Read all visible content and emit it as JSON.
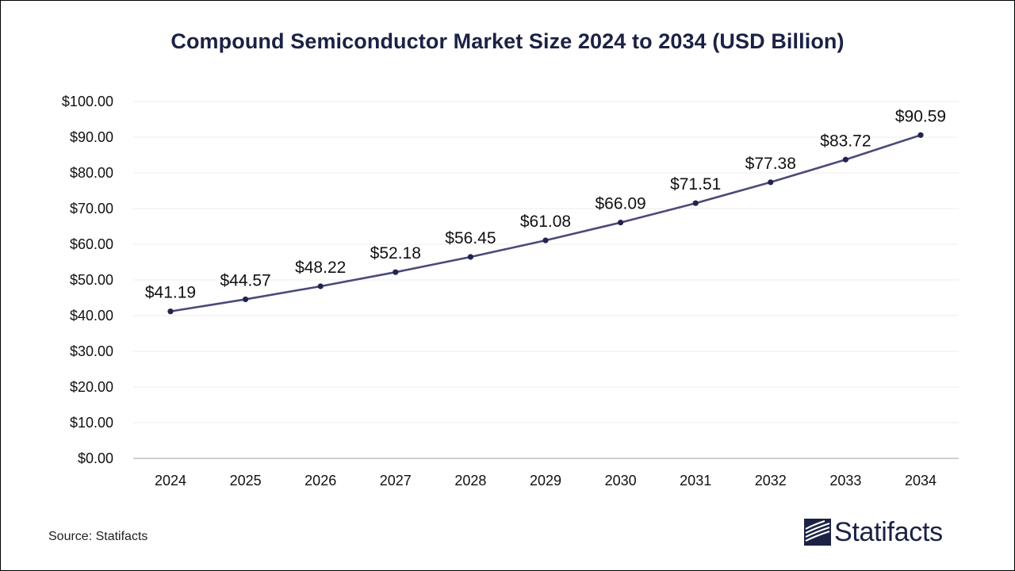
{
  "chart_data": {
    "type": "line",
    "title": "Compound Semiconductor Market Size 2024 to 2034 (USD Billion)",
    "xlabel": "",
    "ylabel": "",
    "categories": [
      "2024",
      "2025",
      "2026",
      "2027",
      "2028",
      "2029",
      "2030",
      "2031",
      "2032",
      "2033",
      "2034"
    ],
    "series": [
      {
        "values": [
          41.19,
          44.57,
          48.22,
          52.18,
          56.45,
          61.08,
          66.09,
          71.51,
          77.38,
          83.72,
          90.59
        ],
        "data_labels": [
          "$41.19",
          "$44.57",
          "$48.22",
          "$52.18",
          "$56.45",
          "$61.08",
          "$66.09",
          "$71.51",
          "$77.38",
          "$83.72",
          "$90.59"
        ]
      }
    ],
    "ylim": [
      0,
      100
    ],
    "yticks": [
      0,
      10,
      20,
      30,
      40,
      50,
      60,
      70,
      80,
      90,
      100
    ],
    "ytick_labels": [
      "$0.00",
      "$10.00",
      "$20.00",
      "$30.00",
      "$40.00",
      "$50.00",
      "$60.00",
      "$70.00",
      "$80.00",
      "$90.00",
      "$100.00"
    ],
    "grid": true,
    "legend": "none"
  },
  "colors": {
    "line": "#4a4a7a",
    "marker": "#23234f",
    "title": "#1b2244",
    "grid": "#ececec",
    "axis": "#bfbfbf",
    "brand": "#1b2244"
  },
  "footer": {
    "source": "Source: Statifacts"
  },
  "brand": {
    "name": "Statifacts",
    "icon": "statifacts-logo-icon"
  }
}
